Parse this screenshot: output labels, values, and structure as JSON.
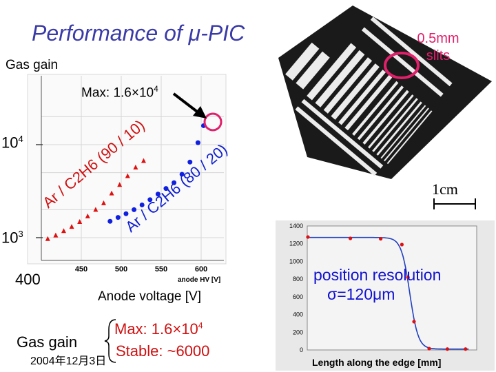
{
  "slide": {
    "title": "Performance of μ-PIC",
    "gas_gain_label": "Gas gain",
    "max_label": "Max: 1.6×10",
    "max_label_exp": "4",
    "y_tick_104": "10",
    "y_tick_104_exp": "4",
    "y_tick_103": "10",
    "y_tick_103_exp": "3",
    "x_tick_400": "400",
    "x_axis_label": "Anode voltage [V]",
    "slits_label": "0.5mm slits",
    "scale_label": "1cm",
    "position_resolution_1": "position resolution",
    "position_resolution_2": "σ=120μm",
    "summary_gas_gain": "Gas gain",
    "summary_max": "Max: 1.6×10",
    "summary_max_exp": "4",
    "summary_stable": "Stable: ~6000",
    "date": "2004年12月3日",
    "res_xlabel": "Length along the edge [mm]"
  },
  "colors": {
    "title": "#3a3aa8",
    "series_red": "#e01010",
    "series_blue": "#1020e0",
    "highlight": "#e0206a",
    "fit_line": "#2040c0"
  },
  "chart_data": [
    {
      "type": "scatter",
      "xlabel": "anode HV [V]",
      "ylabel": "",
      "x_ticks": [
        "450",
        "500",
        "550",
        "600"
      ],
      "xlim": [
        400,
        630
      ],
      "y_scale": "log",
      "ylim": [
        400,
        30000
      ],
      "series": [
        {
          "name": "Ar / C2H6 (90 / 10)",
          "x": [
            408,
            418,
            428,
            438,
            448,
            458,
            468,
            478,
            488,
            498,
            508,
            518,
            528
          ],
          "y": [
            970,
            1060,
            1180,
            1310,
            1480,
            1700,
            2000,
            2350,
            3000,
            3700,
            4600,
            5700,
            6700
          ]
        },
        {
          "name": "Ar / C2H6 (80 / 20)",
          "x": [
            486,
            496,
            506,
            516,
            526,
            536,
            546,
            556,
            566,
            576,
            586,
            596,
            603
          ],
          "y": [
            1500,
            1650,
            1810,
            2000,
            2250,
            2560,
            2940,
            3380,
            3900,
            4800,
            6500,
            10500,
            16000
          ]
        }
      ],
      "grid": true
    },
    {
      "type": "line",
      "xlabel": "Length along the edge [mm]",
      "ylabel": "",
      "y_ticks": [
        "0",
        "200",
        "400",
        "600",
        "800",
        "1000",
        "1200",
        "1400"
      ],
      "ylim": [
        0,
        1400
      ],
      "series": [
        {
          "name": "",
          "x": [
            0.0,
            0.7,
            1.2,
            1.55,
            1.65,
            1.75,
            2.0,
            2.3,
            2.6
          ],
          "y": [
            1275,
            1260,
            1255,
            1190,
            820,
            320,
            15,
            10,
            10
          ]
        }
      ]
    }
  ]
}
